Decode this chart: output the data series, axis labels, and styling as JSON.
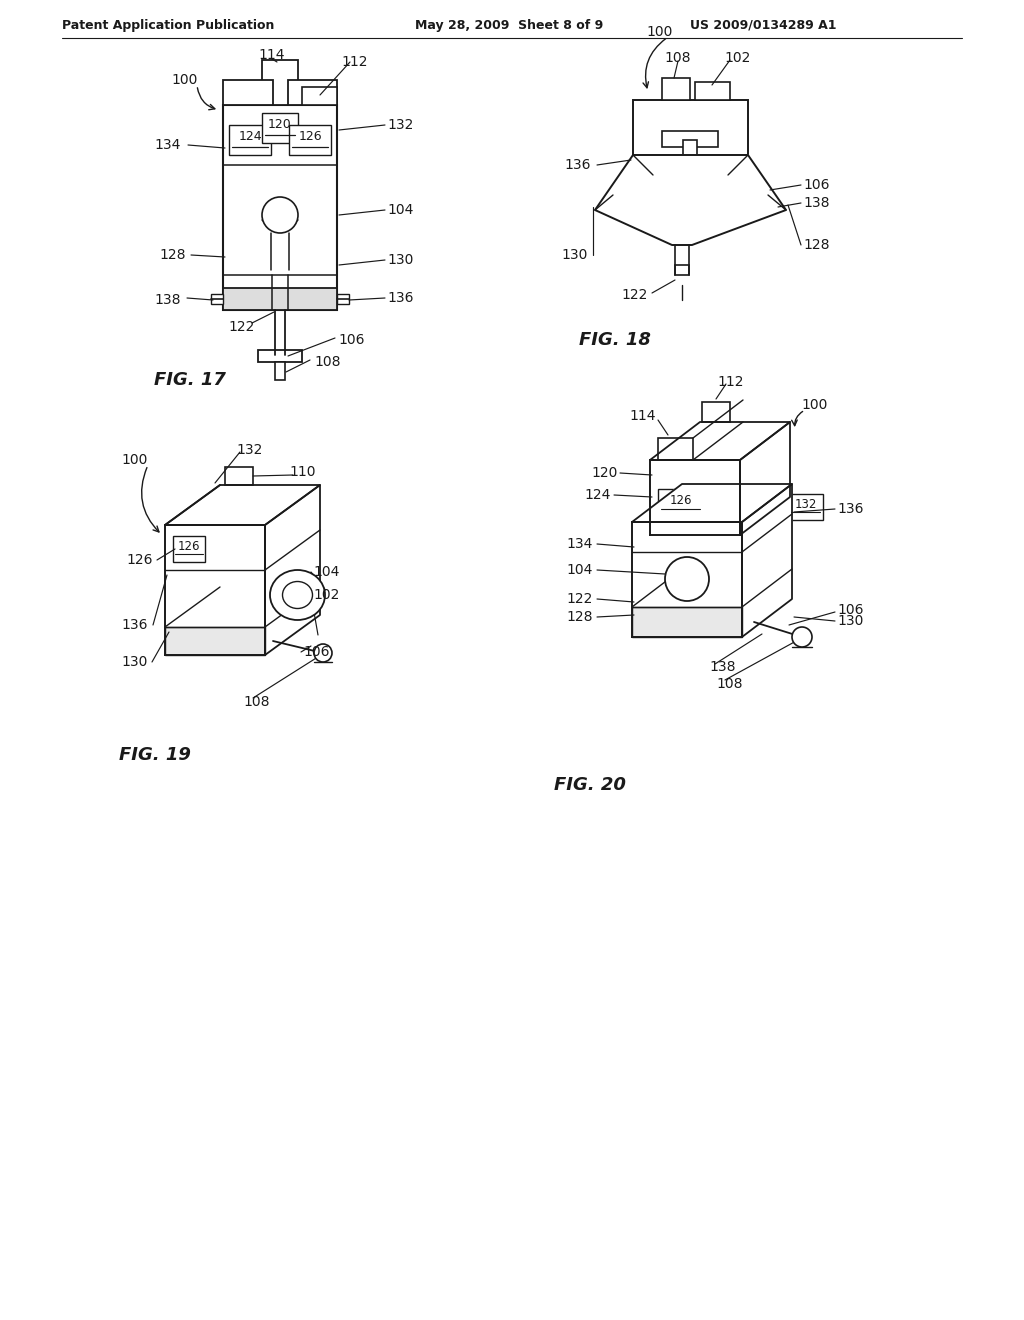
{
  "bg_color": "#ffffff",
  "header_left": "Patent Application Publication",
  "header_mid": "May 28, 2009  Sheet 8 of 9",
  "header_right": "US 2009/0134289 A1",
  "fig17_caption": "FIG. 17",
  "fig18_caption": "FIG. 18",
  "fig19_caption": "FIG. 19",
  "fig20_caption": "FIG. 20",
  "line_color": "#1a1a1a",
  "text_color": "#1a1a1a"
}
